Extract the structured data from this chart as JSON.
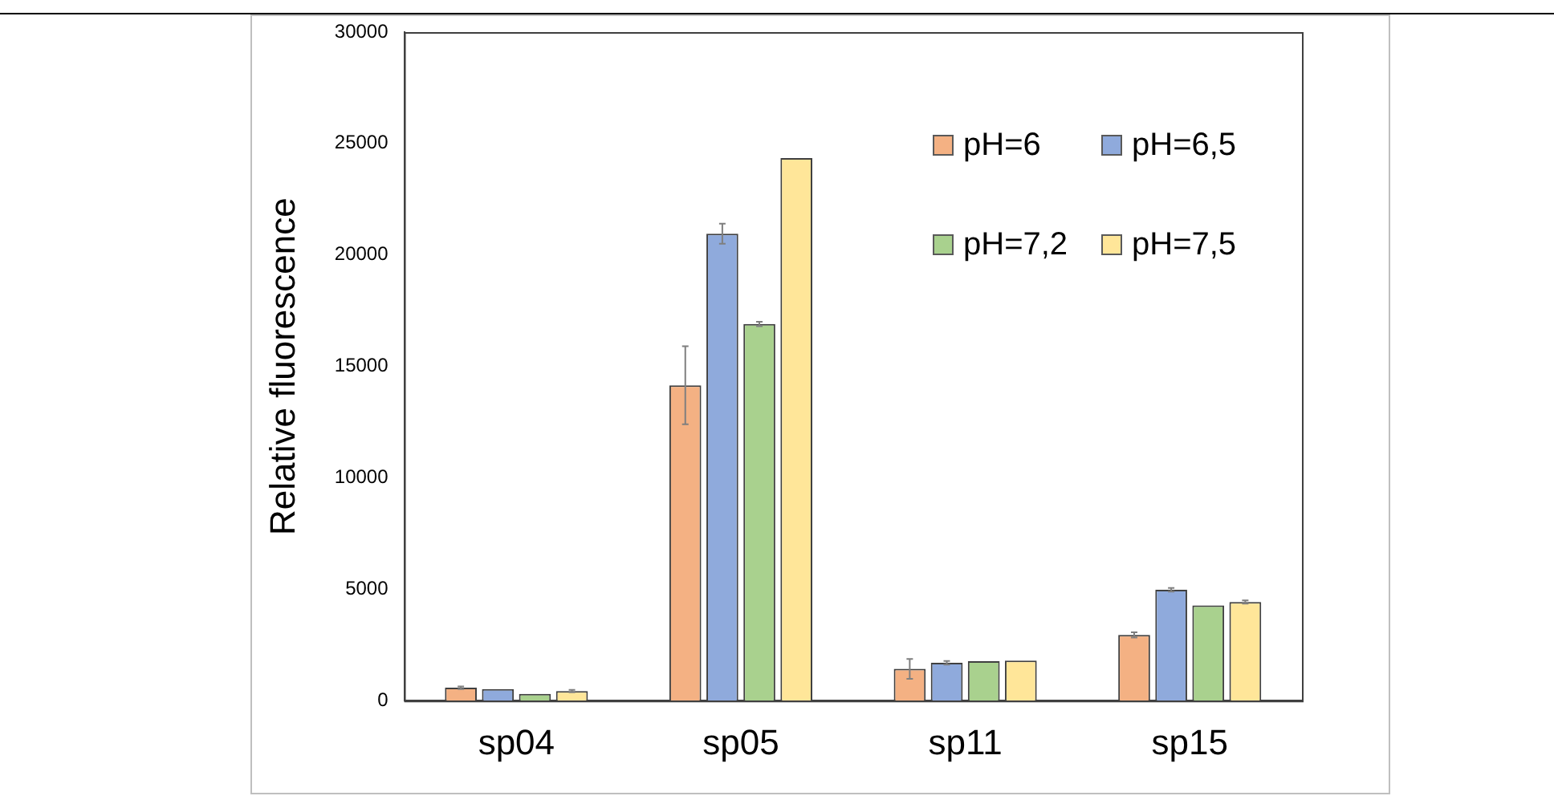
{
  "chart_data": {
    "type": "bar",
    "ylabel": "Relative fluorescence",
    "categories": [
      "sp04",
      "sp05",
      "sp11",
      "sp15"
    ],
    "series": [
      {
        "name": "pH=6",
        "color": "#f4b183",
        "values": [
          580,
          14150,
          1425,
          2950
        ],
        "errors": [
          60,
          1750,
          450,
          120
        ]
      },
      {
        "name": "pH=6,5",
        "color": "#8faadc",
        "values": [
          520,
          20950,
          1700,
          4975
        ],
        "errors": [
          null,
          450,
          80,
          80
        ]
      },
      {
        "name": "pH=7,2",
        "color": "#a9d18e",
        "values": [
          300,
          16900,
          1775,
          4275
        ],
        "errors": [
          null,
          100,
          null,
          null
        ]
      },
      {
        "name": "pH=7,5",
        "color": "#ffe699",
        "values": [
          430,
          24350,
          1800,
          4425
        ],
        "errors": [
          50,
          null,
          null,
          70
        ]
      }
    ],
    "ylim": [
      0,
      30000
    ],
    "yticks": [
      0,
      5000,
      10000,
      15000,
      20000,
      25000,
      30000
    ],
    "legend": "top right",
    "grid": false
  }
}
